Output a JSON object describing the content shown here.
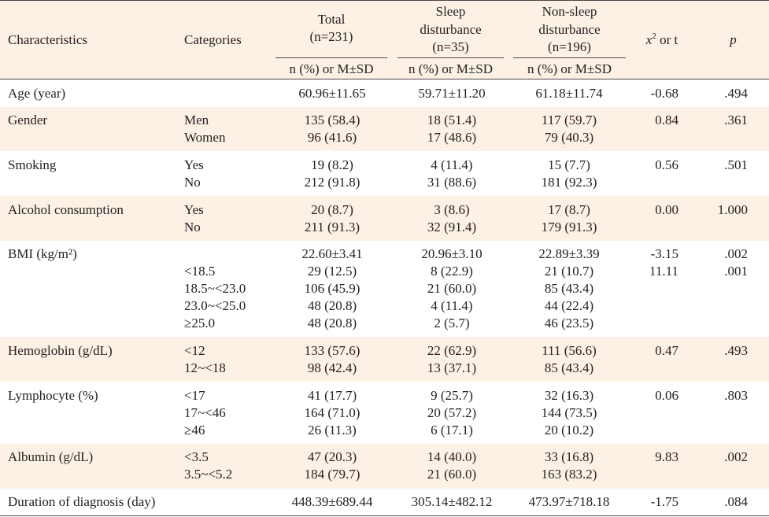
{
  "colors": {
    "header_background": "#fdf0e5",
    "band_background": "#fdf0e5",
    "rule": "#4a4a4a",
    "text": "#222222"
  },
  "table": {
    "headers": {
      "characteristics": "Characteristics",
      "categories": "Categories",
      "total": {
        "title": "Total",
        "n": "(n=231)",
        "sub": "n (%) or M±SD"
      },
      "sleep": {
        "title_line1": "Sleep",
        "title_line2": "disturbance",
        "n": "(n=35)",
        "sub": "n (%) or M±SD"
      },
      "nonsleep": {
        "title_line1": "Non-sleep",
        "title_line2": "disturbance",
        "n": "(n=196)",
        "sub": "n (%) or M±SD"
      },
      "stat": {
        "symbol": "x",
        "superscript": "2",
        "rest": " or t"
      },
      "p": "p"
    },
    "rows": [
      {
        "characteristic": "Age (year)",
        "lines": [
          {
            "total": "60.96±11.65",
            "sleep": "59.71±11.20",
            "nonsleep": "61.18±11.74",
            "stat": "-0.68",
            "p": ".494"
          }
        ]
      },
      {
        "characteristic": "Gender",
        "lines": [
          {
            "category": "Men",
            "total": "135 (58.4)",
            "sleep": "18 (51.4)",
            "nonsleep": "117 (59.7)",
            "stat": "0.84",
            "p": ".361"
          },
          {
            "category": "Women",
            "total": "96 (41.6)",
            "sleep": "17 (48.6)",
            "nonsleep": "79 (40.3)"
          }
        ]
      },
      {
        "characteristic": "Smoking",
        "lines": [
          {
            "category": "Yes",
            "total": "19 (8.2)",
            "sleep": "4 (11.4)",
            "nonsleep": "15 (7.7)",
            "stat": "0.56",
            "p": ".501"
          },
          {
            "category": "No",
            "total": "212 (91.8)",
            "sleep": "31 (88.6)",
            "nonsleep": "181 (92.3)"
          }
        ]
      },
      {
        "characteristic": "Alcohol consumption",
        "lines": [
          {
            "category": "Yes",
            "total": "20 (8.7)",
            "sleep": "3 (8.6)",
            "nonsleep": "17 (8.7)",
            "stat": "0.00",
            "p": "1.000"
          },
          {
            "category": "No",
            "total": "211 (91.3)",
            "sleep": "32 (91.4)",
            "nonsleep": "179 (91.3)"
          }
        ]
      },
      {
        "characteristic": "BMI (kg/m²)",
        "lines": [
          {
            "total": "22.60±3.41",
            "sleep": "20.96±3.10",
            "nonsleep": "22.89±3.39",
            "stat": "-3.15",
            "p": ".002"
          },
          {
            "category": "<18.5",
            "total": "29 (12.5)",
            "sleep": "8 (22.9)",
            "nonsleep": "21 (10.7)",
            "stat": "11.11",
            "p": ".001"
          },
          {
            "category": "18.5~<23.0",
            "total": "106 (45.9)",
            "sleep": "21 (60.0)",
            "nonsleep": "85 (43.4)"
          },
          {
            "category": "23.0~<25.0",
            "total": "48 (20.8)",
            "sleep": "4 (11.4)",
            "nonsleep": "44 (22.4)"
          },
          {
            "category": "≥25.0",
            "total": "48 (20.8)",
            "sleep": "2 (5.7)",
            "nonsleep": "46 (23.5)"
          }
        ]
      },
      {
        "characteristic": "Hemoglobin (g/dL)",
        "lines": [
          {
            "category": "<12",
            "total": "133 (57.6)",
            "sleep": "22 (62.9)",
            "nonsleep": "111 (56.6)",
            "stat": "0.47",
            "p": ".493"
          },
          {
            "category": "12~<18",
            "total": "98 (42.4)",
            "sleep": "13 (37.1)",
            "nonsleep": "85 (43.4)"
          }
        ]
      },
      {
        "characteristic": "Lymphocyte (%)",
        "lines": [
          {
            "category": "<17",
            "total": "41 (17.7)",
            "sleep": "9 (25.7)",
            "nonsleep": "32 (16.3)",
            "stat": "0.06",
            "p": ".803"
          },
          {
            "category": "17~<46",
            "total": "164 (71.0)",
            "sleep": "20 (57.2)",
            "nonsleep": "144 (73.5)"
          },
          {
            "category": "≥46",
            "total": "26 (11.3)",
            "sleep": "6 (17.1)",
            "nonsleep": "20 (10.2)"
          }
        ]
      },
      {
        "characteristic": "Albumin (g/dL)",
        "lines": [
          {
            "category": "<3.5",
            "total": "47 (20.3)",
            "sleep": "14 (40.0)",
            "nonsleep": "33 (16.8)",
            "stat": "9.83",
            "p": ".002"
          },
          {
            "category": "3.5~<5.2",
            "total": "184 (79.7)",
            "sleep": "21 (60.0)",
            "nonsleep": "163 (83.2)"
          }
        ]
      },
      {
        "characteristic": "Duration of diagnosis (day)",
        "lines": [
          {
            "total": "448.39±689.44",
            "sleep": "305.14±482.12",
            "nonsleep": "473.97±718.18",
            "stat": "-1.75",
            "p": ".084"
          }
        ]
      }
    ]
  }
}
